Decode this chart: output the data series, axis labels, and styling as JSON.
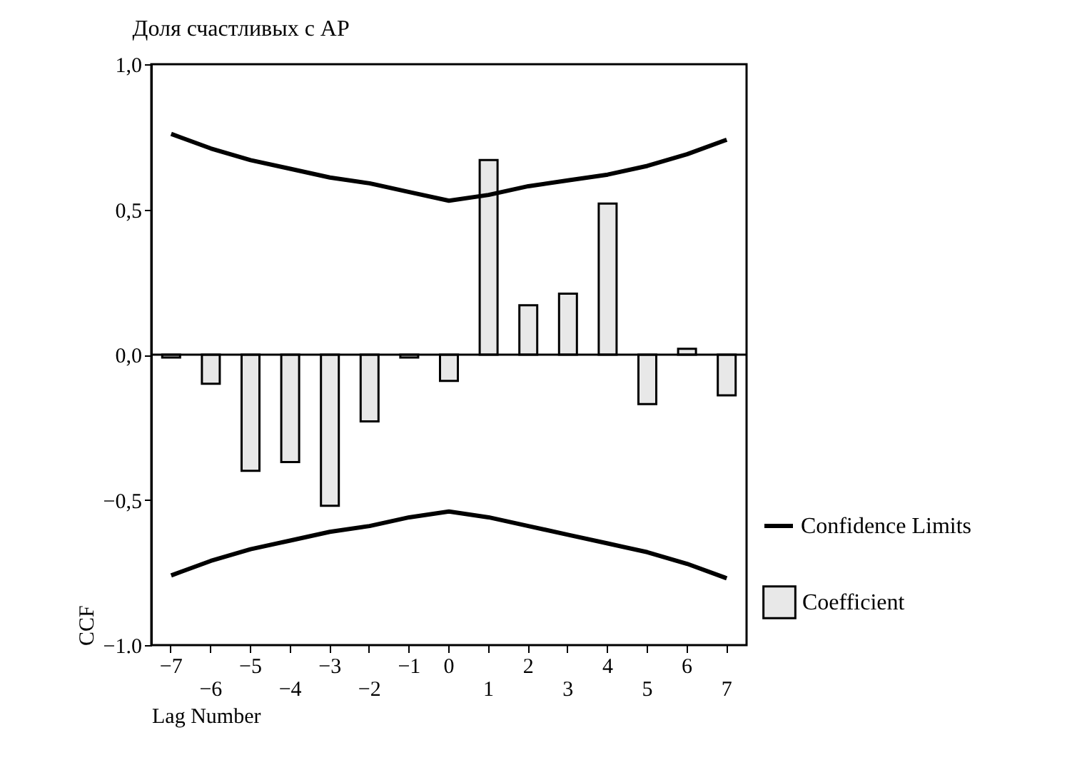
{
  "chart_data": {
    "type": "bar",
    "title": "Доля счастливых с АР",
    "xlabel": "Lag Number",
    "ylabel": "CCF",
    "categories": [
      "−7",
      "−6",
      "−5",
      "−4",
      "−3",
      "−2",
      "−1",
      "0",
      "1",
      "2",
      "3",
      "4",
      "5",
      "6",
      "7"
    ],
    "series": [
      {
        "name": "Coefficient",
        "color": "#e8e8e8",
        "values": [
          -0.01,
          -0.1,
          -0.4,
          -0.37,
          -0.52,
          -0.23,
          -0.01,
          -0.09,
          0.67,
          0.17,
          0.21,
          0.52,
          -0.17,
          0.02,
          -0.14
        ]
      },
      {
        "name": "Confidence Limits",
        "type": "line",
        "color": "#000000",
        "values": [
          0.76,
          0.71,
          0.67,
          0.64,
          0.61,
          0.59,
          0.56,
          0.53,
          0.55,
          0.58,
          0.6,
          0.62,
          0.65,
          0.69,
          0.74
        ]
      },
      {
        "type": "line",
        "color": "#000000",
        "values": [
          -0.76,
          -0.71,
          -0.67,
          -0.64,
          -0.61,
          -0.59,
          -0.56,
          -0.54,
          -0.56,
          -0.59,
          -0.62,
          -0.65,
          -0.68,
          -0.72,
          -0.77
        ]
      }
    ],
    "ylim": [
      -1,
      1
    ],
    "yticks": [
      {
        "value": -1,
        "label": "−1.0"
      },
      {
        "value": -0.5,
        "label": "−0,5"
      },
      {
        "value": 0,
        "label": "0,0"
      },
      {
        "value": 0.5,
        "label": "0,5"
      },
      {
        "value": 1,
        "label": "1,0"
      }
    ],
    "ref_lines": [
      {
        "axis": "y",
        "value": 0
      }
    ],
    "grid": false,
    "legend": "bottom right",
    "marker": "none",
    "line_style": "solid"
  }
}
